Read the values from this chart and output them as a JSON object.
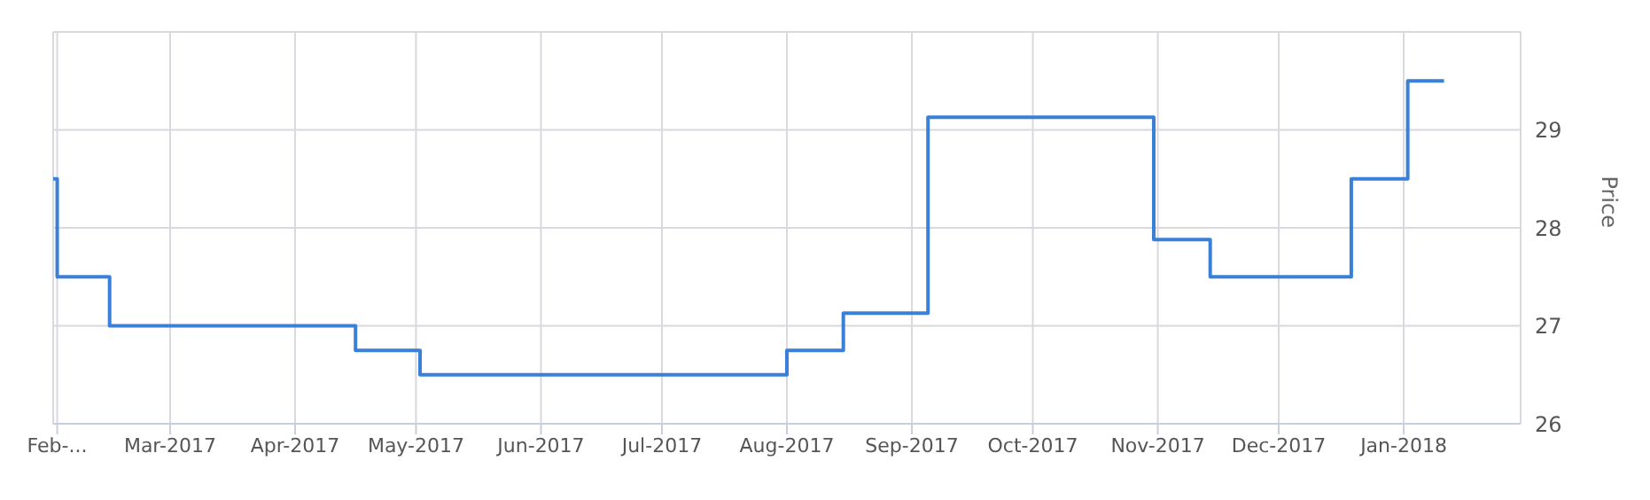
{
  "chart_data": {
    "type": "step",
    "ylabel": "Price",
    "x": [
      "2017-01-31",
      "2017-02-01",
      "2017-02-14",
      "2017-04-16",
      "2017-05-02",
      "2017-08-01",
      "2017-08-15",
      "2017-09-05",
      "2017-10-31",
      "2017-11-14",
      "2017-12-19",
      "2018-01-02",
      "2018-01-11"
    ],
    "series": [
      {
        "color": "#3a80d8",
        "values": [
          28.5,
          27.5,
          27.0,
          26.75,
          26.5,
          26.75,
          27.13,
          29.13,
          27.88,
          27.5,
          28.5,
          29.5,
          29.5
        ]
      }
    ],
    "xlim": [
      "2017-01-31",
      "2018-01-30"
    ],
    "xticks": [
      {
        "value": "2017-02-01",
        "label": "Feb-..."
      },
      {
        "value": "2017-03-01",
        "label": "Mar-2017"
      },
      {
        "value": "2017-04-01",
        "label": "Apr-2017"
      },
      {
        "value": "2017-05-01",
        "label": "May-2017"
      },
      {
        "value": "2017-06-01",
        "label": "Jun-2017"
      },
      {
        "value": "2017-07-01",
        "label": "Jul-2017"
      },
      {
        "value": "2017-08-01",
        "label": "Aug-2017"
      },
      {
        "value": "2017-09-01",
        "label": "Sep-2017"
      },
      {
        "value": "2017-10-01",
        "label": "Oct-2017"
      },
      {
        "value": "2017-11-01",
        "label": "Nov-2017"
      },
      {
        "value": "2017-12-01",
        "label": "Dec-2017"
      },
      {
        "value": "2018-01-01",
        "label": "Jan-2018"
      }
    ],
    "ylim": [
      26,
      30
    ],
    "yticks": [
      26,
      27,
      28,
      29,
      {
        "value": 30,
        "label": null
      }
    ],
    "grid": true,
    "marker": "none",
    "line_style": "solid"
  }
}
